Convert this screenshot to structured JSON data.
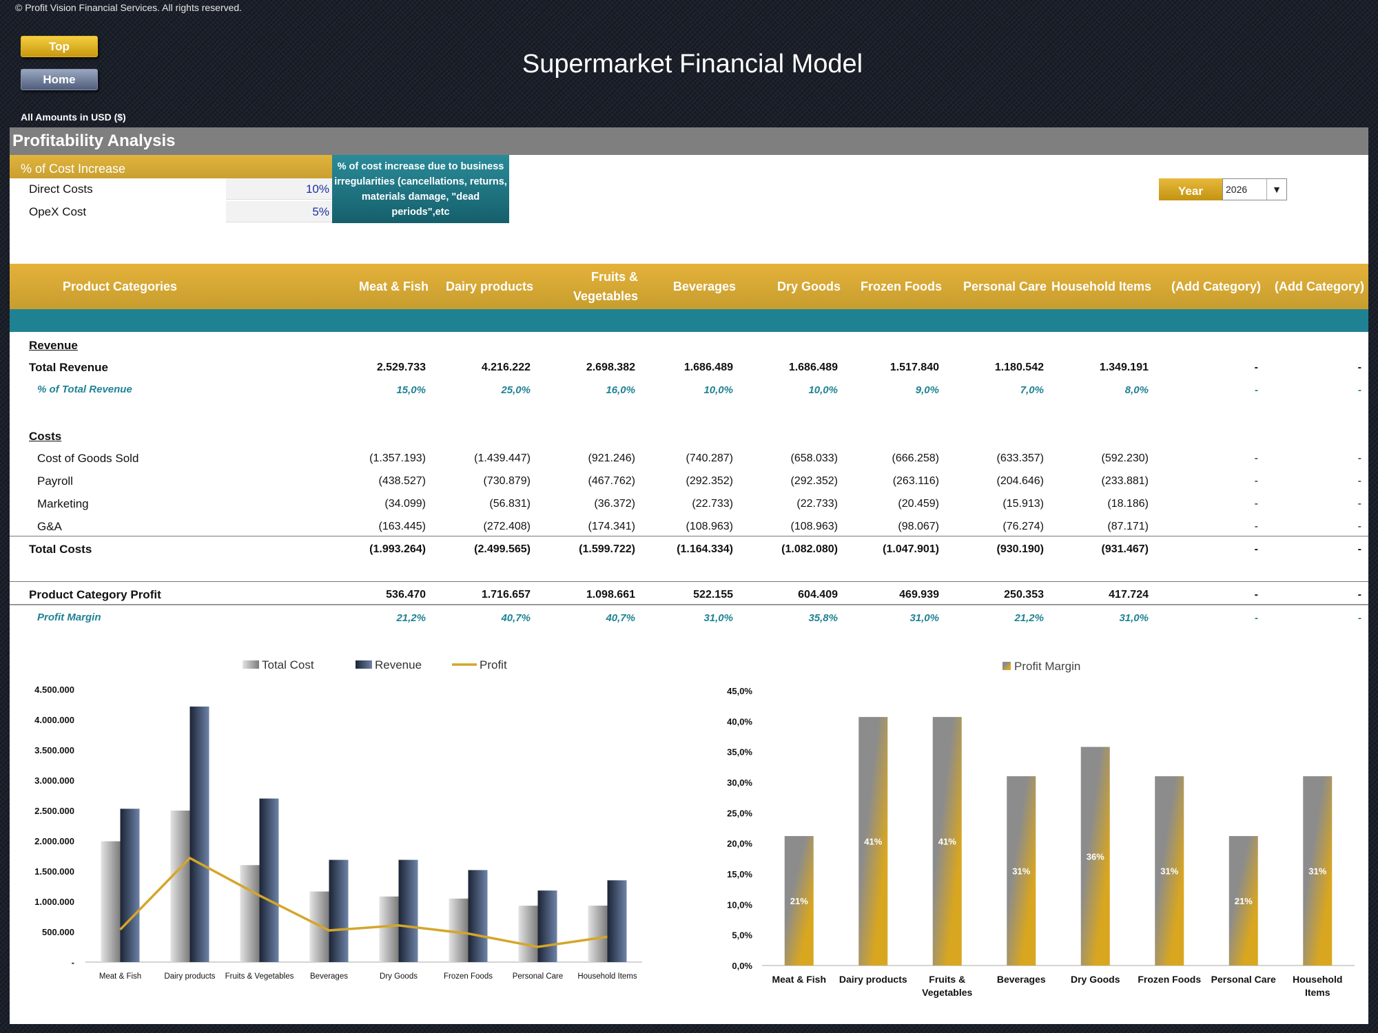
{
  "copyright": "© Profit Vision Financial Services. All rights reserved.",
  "nav": {
    "top_label": "Top",
    "home_label": "Home"
  },
  "title": "Supermarket Financial Model",
  "amounts_note": "All Amounts in  USD ($)",
  "section_title": "Profitability Analysis",
  "cost_increase": {
    "header": "% of Cost Increase",
    "rows": [
      {
        "label": "Direct Costs",
        "value": "10%"
      },
      {
        "label": "OpeX Cost",
        "value": "5%"
      }
    ],
    "note": "% of cost increase due to business irregularities (cancellations, returns, materials damage, \"dead periods\",etc"
  },
  "year_selector": {
    "label": "Year",
    "value": "2026"
  },
  "table": {
    "header_label": "Product Categories",
    "categories": [
      "Meat & Fish",
      "Dairy products",
      "Fruits & Vegetables",
      "Beverages",
      "Dry Goods",
      "Frozen Foods",
      "Personal Care",
      "Household Items",
      "(Add Category)",
      "(Add Category)"
    ],
    "revenue_section": "Revenue",
    "total_revenue": {
      "label": "Total Revenue",
      "values": [
        "2.529.733",
        "4.216.222",
        "2.698.382",
        "1.686.489",
        "1.686.489",
        "1.517.840",
        "1.180.542",
        "1.349.191",
        "-",
        "-"
      ]
    },
    "pct_revenue": {
      "label": "% of Total Revenue",
      "values": [
        "15,0%",
        "25,0%",
        "16,0%",
        "10,0%",
        "10,0%",
        "9,0%",
        "7,0%",
        "8,0%",
        "-",
        "-"
      ]
    },
    "costs_section": "Costs",
    "cogs": {
      "label": "Cost of Goods Sold",
      "values": [
        "(1.357.193)",
        "(1.439.447)",
        "(921.246)",
        "(740.287)",
        "(658.033)",
        "(666.258)",
        "(633.357)",
        "(592.230)",
        "-",
        "-"
      ]
    },
    "payroll": {
      "label": "Payroll",
      "values": [
        "(438.527)",
        "(730.879)",
        "(467.762)",
        "(292.352)",
        "(292.352)",
        "(263.116)",
        "(204.646)",
        "(233.881)",
        "-",
        "-"
      ]
    },
    "marketing": {
      "label": "Marketing",
      "values": [
        "(34.099)",
        "(56.831)",
        "(36.372)",
        "(22.733)",
        "(22.733)",
        "(20.459)",
        "(15.913)",
        "(18.186)",
        "-",
        "-"
      ]
    },
    "ga": {
      "label": "G&A",
      "values": [
        "(163.445)",
        "(272.408)",
        "(174.341)",
        "(108.963)",
        "(108.963)",
        "(98.067)",
        "(76.274)",
        "(87.171)",
        "-",
        "-"
      ]
    },
    "total_costs": {
      "label": "Total Costs",
      "values": [
        "(1.993.264)",
        "(2.499.565)",
        "(1.599.722)",
        "(1.164.334)",
        "(1.082.080)",
        "(1.047.901)",
        "(930.190)",
        "(931.467)",
        "-",
        "-"
      ]
    },
    "profit": {
      "label": "Product Category Profit",
      "values": [
        "536.470",
        "1.716.657",
        "1.098.661",
        "522.155",
        "604.409",
        "469.939",
        "250.353",
        "417.724",
        "-",
        "-"
      ]
    },
    "margin": {
      "label": "Profit Margin",
      "values": [
        "21,2%",
        "40,7%",
        "40,7%",
        "31,0%",
        "35,8%",
        "31,0%",
        "21,2%",
        "31,0%",
        "-",
        "-"
      ]
    }
  },
  "chart_data": [
    {
      "type": "bar",
      "categories": [
        "Meat & Fish",
        "Dairy products",
        "Fruits & Vegetables",
        "Beverages",
        "Dry Goods",
        "Frozen Foods",
        "Personal Care",
        "Household Items"
      ],
      "series": [
        {
          "name": "Total Cost",
          "type": "bar",
          "values": [
            1993264,
            2499565,
            1599722,
            1164334,
            1082080,
            1047901,
            930190,
            931467
          ]
        },
        {
          "name": "Revenue",
          "type": "bar",
          "values": [
            2529733,
            4216222,
            2698382,
            1686489,
            1686489,
            1517840,
            1180542,
            1349191
          ]
        },
        {
          "name": "Profit",
          "type": "line",
          "values": [
            536470,
            1716657,
            1098661,
            522155,
            604409,
            469939,
            250353,
            417724
          ]
        }
      ],
      "yticks": [
        "-",
        "500.000",
        "1.000.000",
        "1.500.000",
        "2.000.000",
        "2.500.000",
        "3.000.000",
        "3.500.000",
        "4.000.000",
        "4.500.000"
      ],
      "ylim": [
        0,
        4500000
      ],
      "legend": "top",
      "colors": {
        "Total Cost": "#9a9a9a",
        "Revenue": "#2c3a56",
        "Profit": "#d4a62a"
      }
    },
    {
      "type": "bar",
      "categories": [
        "Meat & Fish",
        "Dairy products",
        "Fruits & Vegetables",
        "Beverages",
        "Dry Goods",
        "Frozen Foods",
        "Personal Care",
        "Household Items"
      ],
      "series": [
        {
          "name": "Profit Margin",
          "values": [
            21.2,
            40.7,
            40.7,
            31.0,
            35.8,
            31.0,
            21.2,
            31.0
          ],
          "labels": [
            "21%",
            "41%",
            "41%",
            "31%",
            "36%",
            "31%",
            "21%",
            "31%"
          ]
        }
      ],
      "yticks": [
        "0,0%",
        "5,0%",
        "10,0%",
        "15,0%",
        "20,0%",
        "25,0%",
        "30,0%",
        "35,0%",
        "40,0%",
        "45,0%"
      ],
      "ylim": [
        0,
        45
      ],
      "legend": "top",
      "colors": {
        "Profit Margin": "#d4a62a"
      }
    }
  ]
}
